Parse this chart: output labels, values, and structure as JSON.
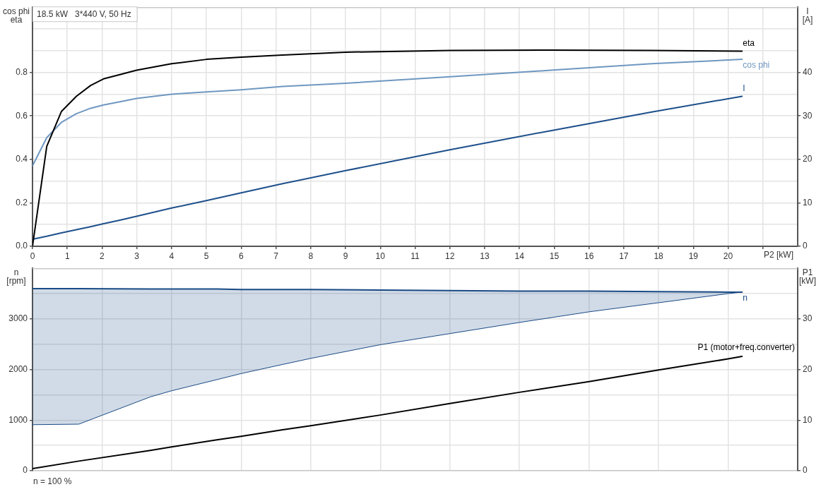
{
  "chart_data": [
    {
      "type": "line",
      "title": "18.5 kW   3*440 V, 50 Hz",
      "xlabel": "P2 [kW]",
      "ylabel": "cos phi\neta",
      "y2label": "I\n[A]",
      "x": [
        0,
        0.41,
        0.83,
        1.26,
        1.67,
        2.04,
        2.51,
        2.99,
        4,
        5,
        6,
        7.19,
        9,
        12,
        14.9,
        17.8,
        20.4
      ],
      "series": [
        {
          "name": "eta",
          "color": "#000000",
          "values": [
            0,
            0.46,
            0.62,
            0.69,
            0.74,
            0.77,
            0.79,
            0.81,
            0.84,
            0.86,
            0.87,
            0.88,
            0.893,
            0.901,
            0.903,
            0.901,
            0.898
          ]
        },
        {
          "name": "cos phi",
          "color": "#6f97c1",
          "values": [
            0.37,
            0.5,
            0.57,
            0.61,
            0.635,
            0.65,
            0.665,
            0.68,
            0.7,
            0.71,
            0.72,
            0.735,
            0.75,
            0.78,
            0.81,
            0.84,
            0.86
          ]
        },
        {
          "name": "I",
          "color": "#1d4f8b",
          "axis": "y2",
          "values": [
            1.6,
            2.3,
            3.1,
            3.8,
            4.5,
            5.2,
            6.0,
            6.9,
            8.8,
            10.5,
            12.3,
            14.4,
            17.4,
            22.2,
            26.6,
            30.9,
            34.5
          ]
        }
      ],
      "xlim": [
        0,
        22
      ],
      "xticks": [
        0,
        1,
        2,
        3,
        4,
        5,
        6,
        7,
        8,
        9,
        10,
        11,
        12,
        13,
        14,
        15,
        16,
        17,
        18,
        19,
        20,
        {
          "value": 21,
          "label": null
        }
      ],
      "ylim": [
        0,
        1.1
      ],
      "yticks": [
        {
          "value": 0,
          "label": "0.0"
        },
        {
          "value": 0.1,
          "label": null
        },
        0.2,
        {
          "value": 0.3,
          "label": null
        },
        0.4,
        {
          "value": 0.5,
          "label": null
        },
        0.6,
        {
          "value": 0.7,
          "label": null
        },
        0.8,
        {
          "value": 0.9,
          "label": null
        },
        {
          "value": 1,
          "label": null
        }
      ],
      "y2lim": [
        0,
        55
      ],
      "y2ticks": [
        0,
        10,
        20,
        30,
        40
      ],
      "grid": true
    },
    {
      "type": "line",
      "ylabel": "n\n[rpm]",
      "y2label": "P1\n[kW]",
      "annotations": [
        "n = 100 %"
      ],
      "x": [
        0,
        1.33,
        3.39,
        4,
        5.3,
        6,
        7.19,
        8,
        10,
        12,
        14,
        16,
        18,
        20,
        20.4
      ],
      "series": [
        {
          "name": "n",
          "color": "#1a4a85",
          "values": [
            3600,
            3600,
            3590,
            3590,
            3590,
            3580,
            3580,
            3580,
            3570,
            3560,
            3550,
            3550,
            3540,
            3530,
            3530
          ],
          "lower": [
            910,
            920,
            1460,
            1580,
            1800,
            1920,
            2100,
            2220,
            2490,
            2710,
            2930,
            3140,
            3320,
            3500,
            3530
          ],
          "upper": [
            3600,
            3600,
            3590,
            3590,
            3590,
            3580,
            3580,
            3580,
            3570,
            3560,
            3550,
            3550,
            3540,
            3530,
            3530
          ]
        },
        {
          "color": "#1a4a85",
          "values": [
            910,
            920,
            1460,
            1580,
            1800,
            1920,
            2100,
            2220,
            2490,
            2710,
            2930,
            3140,
            3320,
            3500,
            3530
          ]
        },
        {
          "name": "P1 (motor+freq.converter)",
          "color": "#000000",
          "axis": "y2",
          "values": [
            0.4,
            1.9,
            4.0,
            4.7,
            6.1,
            6.8,
            8.1,
            8.9,
            11.0,
            13.3,
            15.5,
            17.6,
            19.9,
            22.1,
            22.6
          ]
        }
      ],
      "xlim": [
        0,
        22
      ],
      "xticks": [
        {
          "value": 0,
          "label": null
        },
        {
          "value": 2,
          "label": null
        },
        {
          "value": 4,
          "label": null
        },
        {
          "value": 6,
          "label": null
        },
        {
          "value": 8,
          "label": null
        },
        {
          "value": 10,
          "label": null
        },
        {
          "value": 12,
          "label": null
        },
        {
          "value": 14,
          "label": null
        },
        {
          "value": 16,
          "label": null
        },
        {
          "value": 18,
          "label": null
        },
        {
          "value": 20,
          "label": null
        }
      ],
      "ylim": [
        0,
        4000
      ],
      "yticks": [
        0,
        {
          "value": 500,
          "label": null
        },
        1000,
        {
          "value": 1500,
          "label": null
        },
        2000,
        {
          "value": 2500,
          "label": null
        },
        3000,
        {
          "value": 3500,
          "label": null
        }
      ],
      "y2lim": [
        0,
        40
      ],
      "y2ticks": [
        0,
        10,
        20,
        30
      ],
      "grid": true,
      "tick_labels": "y"
    }
  ]
}
